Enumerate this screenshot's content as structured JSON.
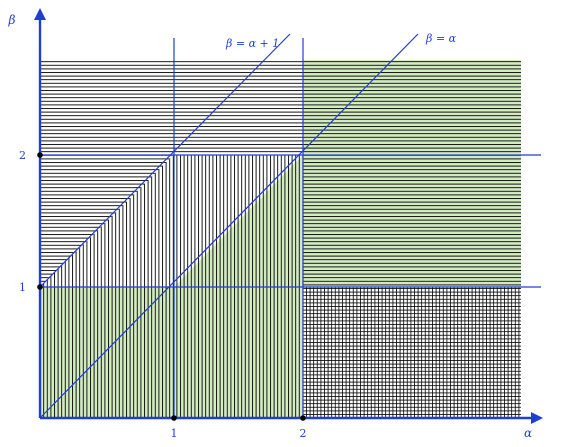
{
  "axes": {
    "x_label": "α",
    "y_label": "β",
    "x_ticks": [
      "1",
      "2"
    ],
    "y_ticks": [
      "1",
      "2"
    ]
  },
  "lines": {
    "diagonal_label": "β = α",
    "shifted_label": "β = α + 1"
  },
  "colors": {
    "axis": "#1f3fd1",
    "hatch": "#000000",
    "fill_green": "#d3ecc2",
    "point": "#000000"
  }
}
